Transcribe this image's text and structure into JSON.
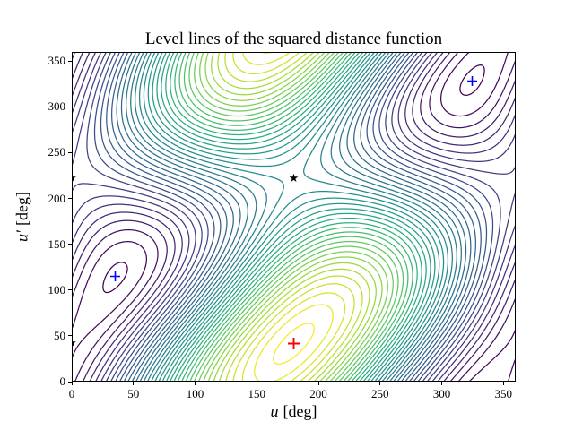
{
  "chart_data": {
    "type": "contour",
    "title": "Level lines of the squared distance function",
    "xlabel": {
      "variable": "u",
      "unit": "[deg]"
    },
    "ylabel": {
      "variable": "u′",
      "unit": "[deg]"
    },
    "xlim": [
      0,
      360
    ],
    "ylim": [
      0,
      360
    ],
    "xticks": [
      0,
      50,
      100,
      150,
      200,
      250,
      300,
      350
    ],
    "yticks": [
      0,
      50,
      100,
      150,
      200,
      250,
      300,
      350
    ],
    "grid": false,
    "legend": null,
    "colormap": {
      "name": "viridis",
      "stops": [
        "#440154",
        "#472d7b",
        "#3b528b",
        "#2c728e",
        "#21918c",
        "#27ad81",
        "#5ec962",
        "#aadc32",
        "#fde725"
      ]
    },
    "field": {
      "description": "Squared distance between points of two circles in 3D, periodic on the torus: f(u,v) = C + A1*cos(w) + A2*cos(u) + A3*cos(u)*cos(w) + A4*sin(u)*sin(w), with w = v - phase_deg",
      "C": 2.6063,
      "A1": 0.5618,
      "A2": -1.858,
      "A3": -1.028,
      "A4": -1.6,
      "phase_deg": 41.5
    },
    "levels": {
      "min": 0.15,
      "step": 0.15,
      "count": 40
    },
    "critical_points": {
      "maximum": [
        [
          180,
          41.5
        ]
      ],
      "minima": [
        [
          35.5,
          115
        ],
        [
          324.5,
          328
        ]
      ],
      "saddles": [
        [
          180,
          221.5
        ],
        [
          0,
          221.5
        ],
        [
          0,
          41.5
        ]
      ]
    },
    "markers": [
      {
        "name": "minimum",
        "symbol": "plus",
        "color": "#0000ff",
        "size": 11,
        "stroke": 1.6,
        "points": [
          [
            35.5,
            115
          ],
          [
            324.5,
            328
          ]
        ]
      },
      {
        "name": "maximum",
        "symbol": "plus",
        "color": "#ff0000",
        "size": 13,
        "stroke": 1.9,
        "points": [
          [
            180,
            41.5
          ]
        ]
      },
      {
        "name": "saddle",
        "symbol": "star",
        "color": "#000000",
        "size": 14,
        "stroke": 0,
        "points": [
          [
            180,
            221.5
          ],
          [
            0,
            221.5
          ],
          [
            0,
            41.5
          ]
        ]
      }
    ]
  }
}
